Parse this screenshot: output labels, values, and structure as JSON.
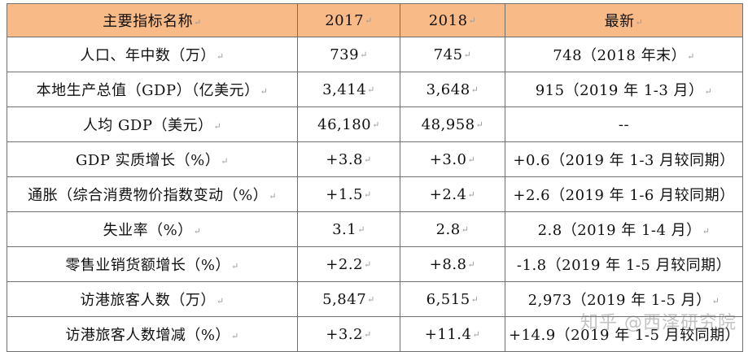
{
  "table": {
    "header_bg": "#f8ba86",
    "headers": [
      "主要指标名称",
      "2017",
      "2018",
      "最新"
    ],
    "rows": [
      [
        "人口、年中数（万）",
        "739",
        "745",
        "748（2018 年末）"
      ],
      [
        "本地生产总值（GDP）（亿美元）",
        "3,414",
        "3,648",
        "915（2019 年 1-3 月）"
      ],
      [
        "人均 GDP（美元）",
        "46,180",
        "48,958",
        "--"
      ],
      [
        "GDP 实质增长（%）",
        "+3.8",
        "+3.0",
        "+0.6（2019 年 1-3 月较同期）"
      ],
      [
        "通胀（综合消费物价指数变动（%）",
        "+1.5",
        "+2.4",
        "+2.6（2019 年 1-6 月较同期）"
      ],
      [
        "失业率（%）",
        "3.1",
        "2.8",
        "2.8（2019 年 1-4 月）"
      ],
      [
        "零售业销货额增长（%）",
        "+2.2",
        "+8.8",
        "-1.8（2019 年 1-5 月较同期）"
      ],
      [
        "访港旅客人数（万）",
        "5,847",
        "6,515",
        "2,973（2019 年 1-5 月）"
      ],
      [
        "访港旅客人数增减（%）",
        "+3.2",
        "+11.4",
        "+14.9（2019 年 1-5 月较同期）"
      ]
    ]
  },
  "paragraph_mark": "↵",
  "watermark": "知乎 @西泽研究院"
}
